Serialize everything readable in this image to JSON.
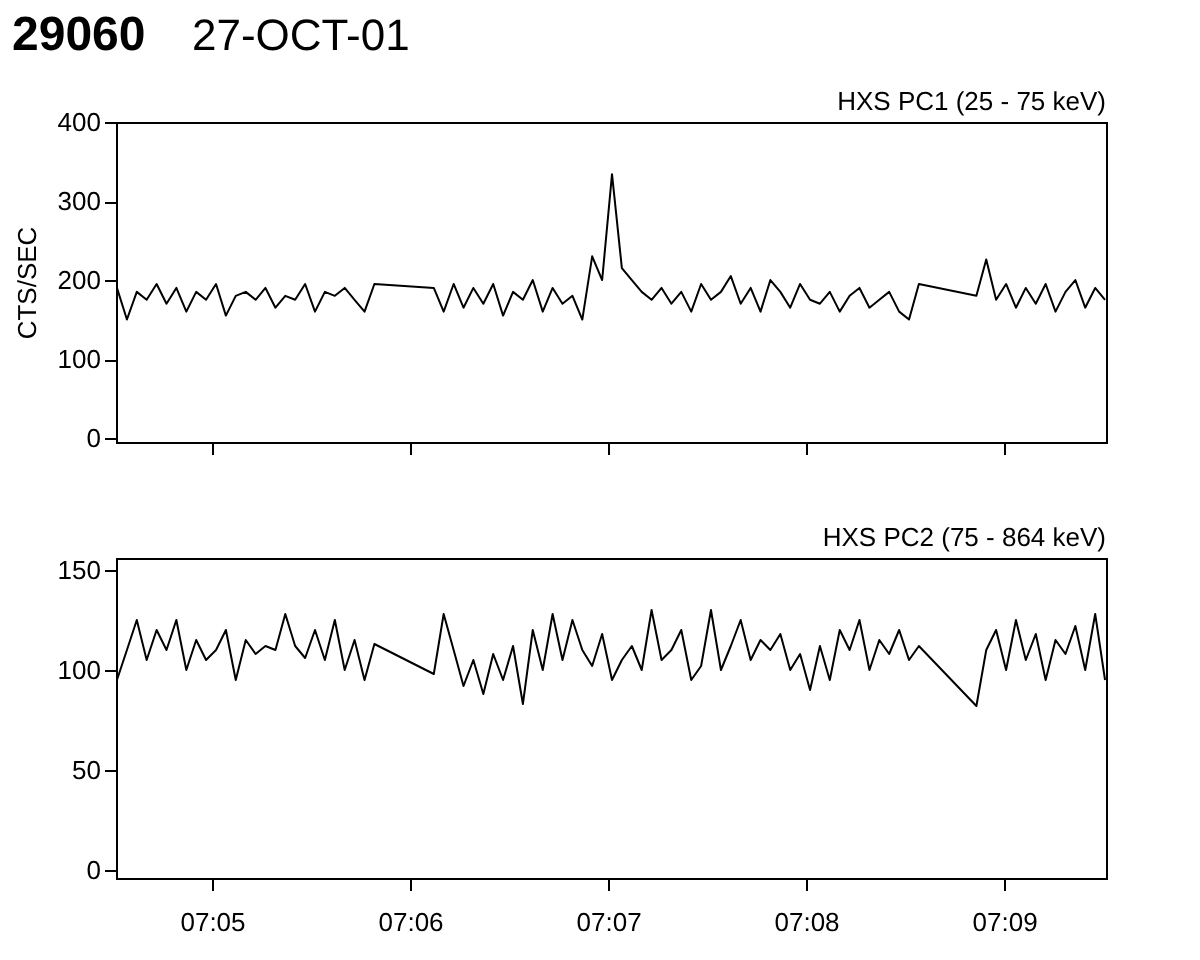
{
  "chart_data": [
    {
      "type": "line",
      "title": "29060",
      "subtitle": "27-OCT-01",
      "ylabel": "CTS/SEC",
      "annotations": [
        "HXS PC1 (25 - 75 keV)"
      ],
      "tick_labels": "y",
      "grid": false,
      "xlim": [
        7.07525,
        7.15858
      ],
      "xticks": [
        {
          "value": 7.08333,
          "label": null
        },
        {
          "value": 7.1,
          "label": null
        },
        {
          "value": 7.11667,
          "label": null
        },
        {
          "value": 7.13333,
          "label": null
        },
        {
          "value": 7.15,
          "label": null
        }
      ],
      "ylim": [
        -5,
        400
      ],
      "yticks": [
        0,
        100,
        200,
        300,
        400
      ],
      "x": [
        7.07533,
        7.07617,
        7.077,
        7.07783,
        7.07867,
        7.0795,
        7.08033,
        7.08117,
        7.082,
        7.08283,
        7.08367,
        7.0845,
        7.08533,
        7.08617,
        7.087,
        7.08783,
        7.08867,
        7.0895,
        7.09033,
        7.09117,
        7.092,
        7.09283,
        7.09367,
        7.0945,
        7.09533,
        7.09617,
        7.097,
        7.102,
        7.10283,
        7.10367,
        7.1045,
        7.10533,
        7.10617,
        7.107,
        7.10783,
        7.10867,
        7.1095,
        7.11033,
        7.11117,
        7.112,
        7.11283,
        7.11367,
        7.1145,
        7.11533,
        7.11617,
        7.117,
        7.11783,
        7.11867,
        7.1195,
        7.12033,
        7.12117,
        7.122,
        7.12283,
        7.12367,
        7.1245,
        7.12533,
        7.12617,
        7.127,
        7.12783,
        7.12867,
        7.1295,
        7.13033,
        7.13117,
        7.132,
        7.13283,
        7.13367,
        7.1345,
        7.13533,
        7.13617,
        7.137,
        7.13783,
        7.13867,
        7.1395,
        7.14033,
        7.14117,
        7.142,
        7.14283,
        7.14767,
        7.1485,
        7.14933,
        7.15017,
        7.151,
        7.15183,
        7.15267,
        7.1535,
        7.15433,
        7.15517,
        7.156,
        7.15683,
        7.15767,
        7.1585
      ],
      "series": [
        {
          "color": "#000000",
          "values": [
            190,
            150,
            185,
            175,
            195,
            170,
            190,
            160,
            185,
            175,
            195,
            155,
            180,
            185,
            175,
            190,
            165,
            180,
            175,
            195,
            160,
            185,
            180,
            190,
            175,
            160,
            195,
            190,
            160,
            195,
            165,
            190,
            170,
            195,
            155,
            185,
            175,
            200,
            160,
            190,
            170,
            180,
            150,
            230,
            200,
            334,
            215,
            200,
            185,
            175,
            190,
            170,
            185,
            160,
            195,
            175,
            185,
            205,
            170,
            190,
            160,
            200,
            185,
            165,
            195,
            175,
            170,
            185,
            160,
            180,
            190,
            165,
            175,
            185,
            160,
            150,
            195,
            180,
            226,
            175,
            195,
            165,
            190,
            170,
            195,
            160,
            185,
            200,
            165,
            190,
            175
          ]
        }
      ]
    },
    {
      "type": "line",
      "annotations": [
        "HXS PC2 (75 - 864 keV)"
      ],
      "grid": false,
      "xlim": [
        7.07525,
        7.15858
      ],
      "xticks": [
        {
          "value": 7.08333,
          "label": "07:05"
        },
        {
          "value": 7.1,
          "label": "07:06"
        },
        {
          "value": 7.11667,
          "label": "07:07"
        },
        {
          "value": 7.13333,
          "label": "07:08"
        },
        {
          "value": 7.15,
          "label": "07:09"
        }
      ],
      "ylim": [
        -4,
        156
      ],
      "yticks": [
        0,
        50,
        100,
        150
      ],
      "x": [
        7.07533,
        7.07617,
        7.077,
        7.07783,
        7.07867,
        7.0795,
        7.08033,
        7.08117,
        7.082,
        7.08283,
        7.08367,
        7.0845,
        7.08533,
        7.08617,
        7.087,
        7.08783,
        7.08867,
        7.0895,
        7.09033,
        7.09117,
        7.092,
        7.09283,
        7.09367,
        7.0945,
        7.09533,
        7.09617,
        7.097,
        7.102,
        7.10283,
        7.10367,
        7.1045,
        7.10533,
        7.10617,
        7.107,
        7.10783,
        7.10867,
        7.1095,
        7.11033,
        7.11117,
        7.112,
        7.11283,
        7.11367,
        7.1145,
        7.11533,
        7.11617,
        7.117,
        7.11783,
        7.11867,
        7.1195,
        7.12033,
        7.12117,
        7.122,
        7.12283,
        7.12367,
        7.1245,
        7.12533,
        7.12617,
        7.127,
        7.12783,
        7.12867,
        7.1295,
        7.13033,
        7.13117,
        7.132,
        7.13283,
        7.13367,
        7.1345,
        7.13533,
        7.13617,
        7.137,
        7.13783,
        7.13867,
        7.1395,
        7.14033,
        7.14117,
        7.142,
        7.14283,
        7.14767,
        7.1485,
        7.14933,
        7.15017,
        7.151,
        7.15183,
        7.15267,
        7.1535,
        7.15433,
        7.15517,
        7.156,
        7.15683,
        7.15767,
        7.1585
      ],
      "series": [
        {
          "color": "#000000",
          "values": [
            95,
            110,
            125,
            105,
            120,
            110,
            125,
            100,
            115,
            105,
            110,
            120,
            95,
            115,
            108,
            112,
            110,
            128,
            112,
            106,
            120,
            105,
            125,
            100,
            115,
            95,
            113,
            98,
            128,
            110,
            92,
            105,
            88,
            108,
            95,
            112,
            83,
            120,
            100,
            128,
            105,
            125,
            110,
            102,
            118,
            95,
            105,
            112,
            100,
            130,
            105,
            110,
            120,
            95,
            102,
            130,
            100,
            112,
            125,
            105,
            115,
            110,
            118,
            100,
            108,
            90,
            112,
            95,
            120,
            110,
            125,
            100,
            115,
            108,
            120,
            105,
            112,
            82,
            110,
            120,
            100,
            125,
            105,
            118,
            95,
            115,
            108,
            122,
            100,
            128,
            95
          ]
        }
      ]
    }
  ]
}
